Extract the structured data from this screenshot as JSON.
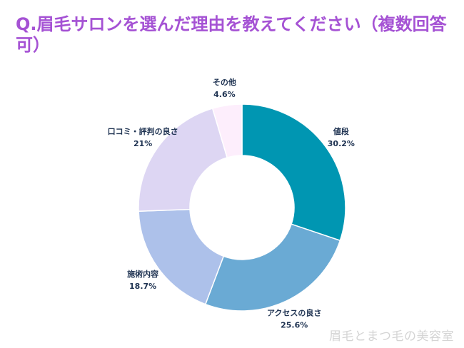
{
  "title": "Q.眉毛サロンを選んだ理由を教えてください（複数回答可）",
  "watermark": "眉毛とまつ毛の美容室",
  "chart_data": {
    "type": "pie",
    "donut": true,
    "title": "Q.眉毛サロンを選んだ理由を教えてください（複数回答可）",
    "unit": "%",
    "slices": [
      {
        "label": "値段",
        "value": 30.2,
        "value_label": "30.2%",
        "color": "#0096b2"
      },
      {
        "label": "アクセスの良さ",
        "value": 25.6,
        "value_label": "25.6%",
        "color": "#6aaad4"
      },
      {
        "label": "施術内容",
        "value": 18.7,
        "value_label": "18.7%",
        "color": "#adc1ea"
      },
      {
        "label": "口コミ・評判の良さ",
        "value": 21,
        "value_label": "21%",
        "color": "#ddd6f3"
      },
      {
        "label": "その他",
        "value": 4.6,
        "value_label": "4.6%",
        "color": "#fdeefc"
      }
    ]
  }
}
